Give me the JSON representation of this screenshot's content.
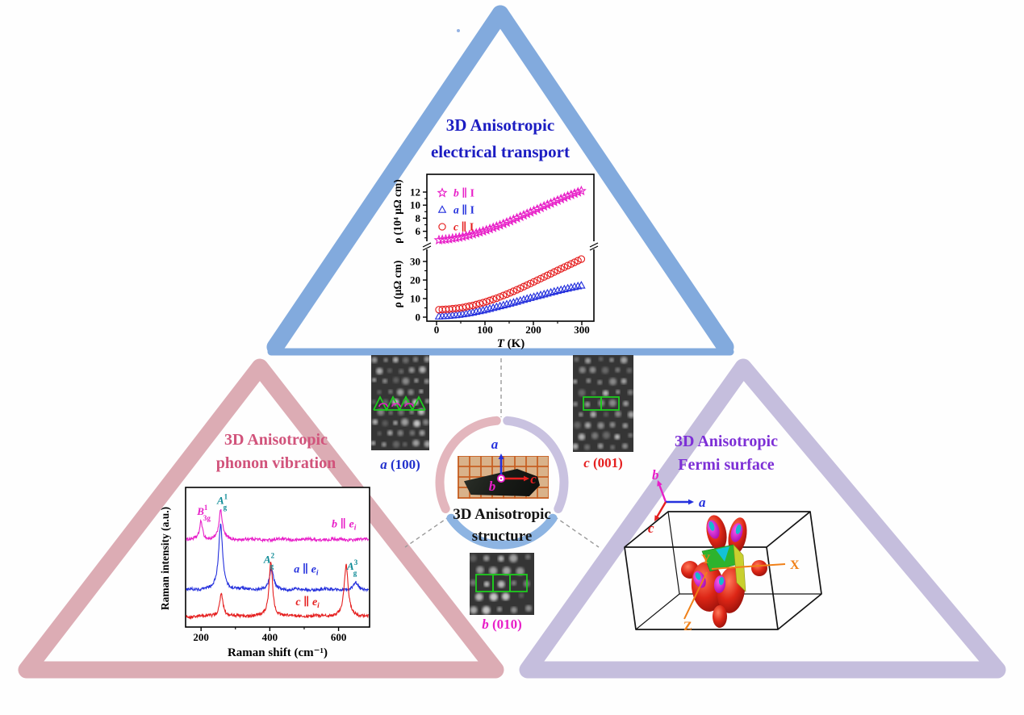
{
  "titles": {
    "top1": "3D Anisotropic",
    "top2": "electrical transport",
    "left1": "3D Anisotropic",
    "left2": "phonon vibration",
    "right1": "3D Anisotropic",
    "right2": "Fermi surface",
    "center1": "3D Anisotropic",
    "center2": "structure"
  },
  "colors": {
    "top_triangle": "#82aadd",
    "left_triangle": "#dcacb4",
    "right_triangle": "#c5bedd",
    "ring_pink": "#e3b6bd",
    "ring_lavender": "#c9c2e0",
    "ring_blue": "#8db4e2",
    "top_title": "#1b1cc2",
    "left_title": "#d1537b",
    "right_title": "#7d2fd6",
    "center_title": "#141414",
    "magenta": "#e81fc8",
    "blue": "#2531dd",
    "red": "#e51f1f",
    "green": "#1ecb1e",
    "orange": "#f08018",
    "dashed": "#9a9a9a"
  },
  "tem": {
    "a100": {
      "letter": "a",
      "plane": " (100)",
      "color": "#2130cc"
    },
    "c001": {
      "letter": "c",
      "plane": " (001)",
      "color": "#e51f1f"
    },
    "b010": {
      "letter": "b",
      "plane": " (010)",
      "color": "#e81fc8"
    }
  },
  "crystal_axes": {
    "a": "a",
    "b": "b",
    "c": "c"
  },
  "fermi": {
    "axis_a": "a",
    "axis_b": "b",
    "axis_c": "c",
    "bz_x": "X",
    "bz_y": "Y",
    "bz_z": "Z"
  },
  "chart_data": [
    {
      "id": "transport",
      "type": "scatter",
      "xlabel_italic": "T",
      "xlabel_rest": " (K)",
      "x_ticks": [
        0,
        100,
        200,
        300
      ],
      "x_minor_ticks": [
        50,
        150,
        250
      ],
      "xlim": [
        0,
        310
      ],
      "axis_break": true,
      "panels": [
        {
          "pos": "upper",
          "ylabel": "ρ (10⁴ μΩ cm)",
          "y_ticks": [
            6,
            8,
            10,
            12
          ],
          "y_minor_ticks": [
            5,
            7,
            9,
            11
          ],
          "ylim": [
            4,
            13
          ]
        },
        {
          "pos": "lower",
          "ylabel": "ρ (μΩ cm)",
          "y_ticks": [
            0,
            10,
            20,
            30
          ],
          "y_minor_ticks": [
            5,
            15,
            25
          ],
          "ylim": [
            -2,
            35
          ]
        }
      ],
      "series": [
        {
          "italic": "b",
          "rest": " ∥ I",
          "marker": "star",
          "color": "#e81fc8",
          "panel": "upper",
          "T": [
            5,
            25,
            50,
            75,
            100,
            125,
            150,
            175,
            200,
            225,
            250,
            275,
            300
          ],
          "rho": [
            4.65,
            4.8,
            5.1,
            5.55,
            6.1,
            6.75,
            7.5,
            8.3,
            9.1,
            9.92,
            10.72,
            11.5,
            12.2
          ]
        },
        {
          "italic": "a",
          "rest": " ∥ I",
          "marker": "triangle",
          "color": "#2531dd",
          "panel": "lower",
          "T": [
            5,
            25,
            50,
            75,
            100,
            125,
            150,
            175,
            200,
            225,
            250,
            275,
            300
          ],
          "rho": [
            0.4,
            0.7,
            1.4,
            2.5,
            3.9,
            5.5,
            7.2,
            9.0,
            10.8,
            12.5,
            14.2,
            15.7,
            17.1
          ]
        },
        {
          "italic": "c",
          "rest": " ∥ I",
          "marker": "circle",
          "color": "#e51f1f",
          "panel": "lower",
          "T": [
            5,
            25,
            50,
            75,
            100,
            125,
            150,
            175,
            200,
            225,
            250,
            275,
            300
          ],
          "rho": [
            4.0,
            4.3,
            5.0,
            6.3,
            8.1,
            10.3,
            12.9,
            15.8,
            18.9,
            22.0,
            25.2,
            28.3,
            31.4
          ]
        }
      ],
      "legend_order": [
        "b",
        "a",
        "c"
      ]
    },
    {
      "id": "raman",
      "type": "line",
      "xlabel": "Raman shift (cm⁻¹)",
      "ylabel": "Raman intensity (a.u.)",
      "x_ticks": [
        200,
        400,
        600
      ],
      "x_minor_ticks": [
        300,
        500
      ],
      "xlim": [
        155,
        690
      ],
      "series": [
        {
          "italic": "b",
          "mid": " ∥ ",
          "evar": "e",
          "sub": "i",
          "color": "#e81fc8",
          "baseline": 0.62,
          "label_x": 580,
          "label_y": 0.71,
          "peaks": [
            {
              "center": 200,
              "height": 0.13,
              "width": 5
            },
            {
              "center": 257,
              "height": 0.21,
              "width": 6
            }
          ]
        },
        {
          "italic": "a",
          "mid": " ∥ ",
          "evar": "e",
          "sub": "i",
          "color": "#2531dd",
          "baseline": 0.255,
          "label_x": 470,
          "label_y": 0.38,
          "peaks": [
            {
              "center": 257,
              "height": 0.47,
              "width": 7
            },
            {
              "center": 405,
              "height": 0.145,
              "width": 7
            },
            {
              "center": 650,
              "height": 0.05,
              "width": 7
            }
          ]
        },
        {
          "italic": "c",
          "mid": " ∥ ",
          "evar": "e",
          "sub": "i",
          "color": "#e51f1f",
          "baseline": 0.06,
          "label_x": 475,
          "label_y": 0.14,
          "peaks": [
            {
              "center": 259,
              "height": 0.17,
              "width": 6
            },
            {
              "center": 403,
              "height": 0.4,
              "width": 6
            },
            {
              "center": 622,
              "height": 0.37,
              "width": 7
            }
          ]
        }
      ],
      "peak_labels": [
        {
          "base": "B",
          "sub": "3g",
          "sup": "1",
          "x": 208,
          "y": 0.8,
          "color": "#e81fc8"
        },
        {
          "base": "A",
          "sub": "g",
          "sup": "1",
          "x": 262,
          "y": 0.88,
          "color": "#0d8a96"
        },
        {
          "base": "A",
          "sub": "g",
          "sup": "2",
          "x": 398,
          "y": 0.45,
          "color": "#0d8a96"
        },
        {
          "base": "A",
          "sub": "g",
          "sup": "3",
          "x": 640,
          "y": 0.4,
          "color": "#0d8a96"
        }
      ]
    }
  ]
}
